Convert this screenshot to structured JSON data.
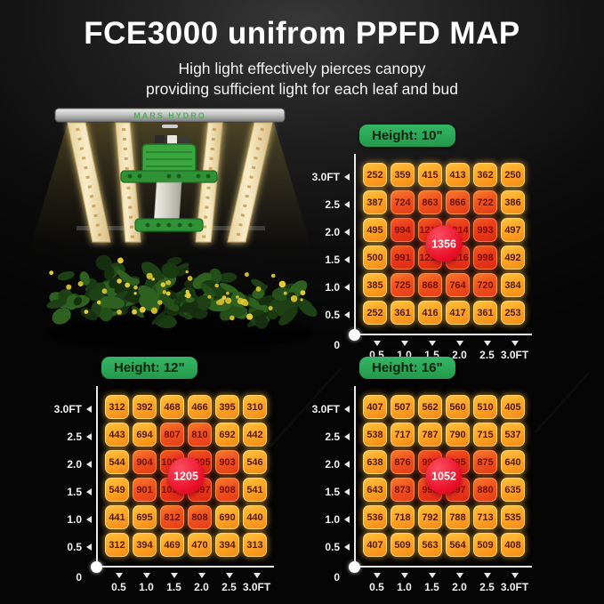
{
  "header": {
    "title": "FCE3000 unifrom PPFD MAP",
    "subtitle_line1": "High light effectively pierces canopy",
    "subtitle_line2": "providing sufficient light for each leaf and bud"
  },
  "product_image": {
    "description": "LED grow light fixture with four warm light bars above flowering plant canopy",
    "logo_text": "MARS HYDRO"
  },
  "colors": {
    "badge_green": "#2BAD5C",
    "cell_warm_orange": "#FFA726",
    "cell_hot_red_orange": "#EF531F",
    "cell_very_hot_red": "#E93A1A",
    "center_badge_red": "#EA1028",
    "axis_white": "#E9E9E9",
    "background_black": "#0C0C0C"
  },
  "chart_data": [
    {
      "type": "heatmap",
      "title": "Height: 10\"",
      "x_ticks": [
        "0.5",
        "1.0",
        "1.5",
        "2.0",
        "2.5",
        "3.0FT"
      ],
      "y_ticks": [
        "3.0FT",
        "2.5",
        "2.0",
        "1.5",
        "1.0",
        "0.5"
      ],
      "origin_label": "0",
      "center_value": 1356,
      "hot_threshold": 700,
      "vhot_threshold": 950,
      "values": [
        [
          252,
          359,
          415,
          413,
          362,
          250
        ],
        [
          387,
          724,
          863,
          866,
          722,
          386
        ],
        [
          495,
          994,
          1217,
          1214,
          993,
          497
        ],
        [
          500,
          991,
          1212,
          1216,
          998,
          492
        ],
        [
          385,
          725,
          868,
          764,
          720,
          384
        ],
        [
          252,
          361,
          416,
          417,
          361,
          253
        ]
      ]
    },
    {
      "type": "heatmap",
      "title": "Height: 12\"",
      "x_ticks": [
        "0.5",
        "1.0",
        "1.5",
        "2.0",
        "2.5",
        "3.0FT"
      ],
      "y_ticks": [
        "3.0FT",
        "2.5",
        "2.0",
        "1.5",
        "1.0",
        "0.5"
      ],
      "origin_label": "0",
      "center_value": 1205,
      "hot_threshold": 750,
      "vhot_threshold": 1000,
      "values": [
        [
          312,
          392,
          468,
          466,
          395,
          310
        ],
        [
          443,
          694,
          807,
          810,
          692,
          442
        ],
        [
          544,
          904,
          1098,
          1095,
          903,
          546
        ],
        [
          549,
          901,
          1093,
          1097,
          908,
          541
        ],
        [
          441,
          695,
          812,
          808,
          690,
          440
        ],
        [
          312,
          394,
          469,
          470,
          394,
          313
        ]
      ]
    },
    {
      "type": "heatmap",
      "title": "Height: 16\"",
      "x_ticks": [
        "0.5",
        "1.0",
        "1.5",
        "2.0",
        "2.5",
        "3.0FT"
      ],
      "y_ticks": [
        "3.0FT",
        "2.5",
        "2.0",
        "1.5",
        "1.0",
        "0.5"
      ],
      "origin_label": "0",
      "center_value": 1052,
      "hot_threshold": 800,
      "vhot_threshold": 950,
      "values": [
        [
          407,
          507,
          562,
          560,
          510,
          405
        ],
        [
          538,
          717,
          787,
          790,
          715,
          537
        ],
        [
          638,
          876,
          998,
          995,
          875,
          640
        ],
        [
          643,
          873,
          993,
          997,
          880,
          635
        ],
        [
          536,
          718,
          792,
          788,
          713,
          535
        ],
        [
          407,
          509,
          563,
          564,
          509,
          408
        ]
      ]
    }
  ]
}
